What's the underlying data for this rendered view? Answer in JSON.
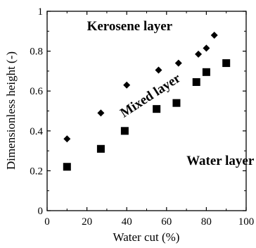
{
  "chart_data": {
    "type": "scatter",
    "xlabel": "Water cut  (%)",
    "ylabel": "Dimensionless height (-)",
    "xlim": [
      0,
      100
    ],
    "ylim": [
      0,
      1
    ],
    "x_ticks": [
      "0",
      "20",
      "40",
      "60",
      "80",
      "100"
    ],
    "y_ticks": [
      "0",
      "0.2",
      "0.4",
      "0.6",
      "0.8",
      "1"
    ],
    "grid": false,
    "series": [
      {
        "marker": "diamond",
        "points": [
          {
            "x": 10,
            "y": 0.36
          },
          {
            "x": 27,
            "y": 0.49
          },
          {
            "x": 40,
            "y": 0.63
          },
          {
            "x": 56,
            "y": 0.705
          },
          {
            "x": 66,
            "y": 0.74
          },
          {
            "x": 76,
            "y": 0.785
          },
          {
            "x": 80,
            "y": 0.815
          },
          {
            "x": 84,
            "y": 0.88
          }
        ]
      },
      {
        "marker": "square",
        "points": [
          {
            "x": 10,
            "y": 0.22
          },
          {
            "x": 27,
            "y": 0.31
          },
          {
            "x": 39,
            "y": 0.4
          },
          {
            "x": 55,
            "y": 0.51
          },
          {
            "x": 65,
            "y": 0.54
          },
          {
            "x": 75,
            "y": 0.645
          },
          {
            "x": 80,
            "y": 0.695
          },
          {
            "x": 90,
            "y": 0.74
          }
        ]
      }
    ],
    "annotations": [
      {
        "text": "Kerosene layer",
        "x": 20,
        "y": 0.905
      },
      {
        "text": "Mixed layer",
        "x": 53,
        "y": 0.56,
        "rotation_deg": -33
      },
      {
        "text": "Water layer",
        "x": 70,
        "y": 0.23
      }
    ]
  }
}
